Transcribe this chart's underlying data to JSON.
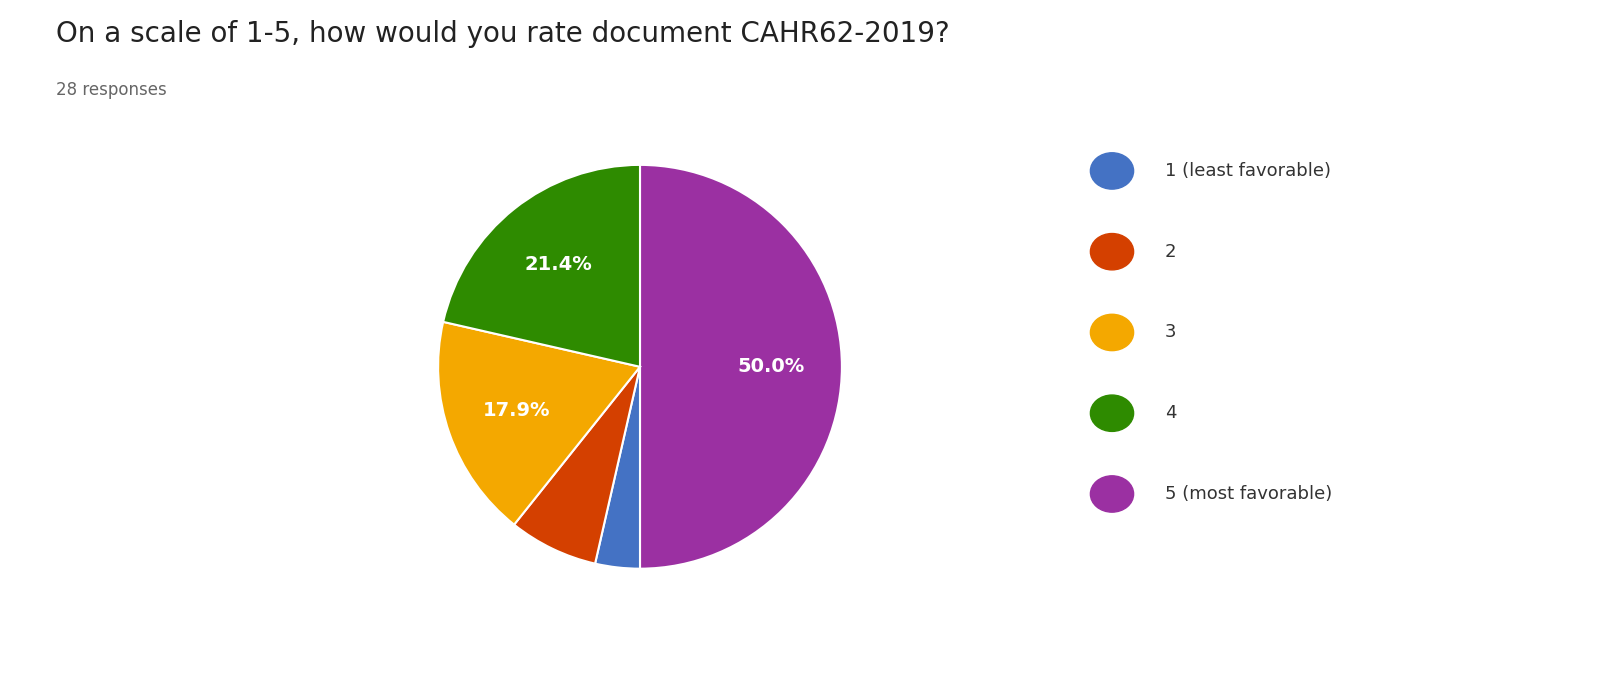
{
  "title": "On a scale of 1-5, how would you rate document CAHR62-2019?",
  "subtitle": "28 responses",
  "labels": [
    "1 (least favorable)",
    "2",
    "3",
    "4",
    "5 (most favorable)"
  ],
  "values": [
    1,
    2,
    5,
    6,
    14
  ],
  "colors": [
    "#4472C4",
    "#D44000",
    "#F4A800",
    "#2E8B00",
    "#9B30A2"
  ],
  "background_color": "#ffffff",
  "title_fontsize": 20,
  "subtitle_fontsize": 12,
  "legend_fontsize": 13,
  "pct_fontsize": 14
}
